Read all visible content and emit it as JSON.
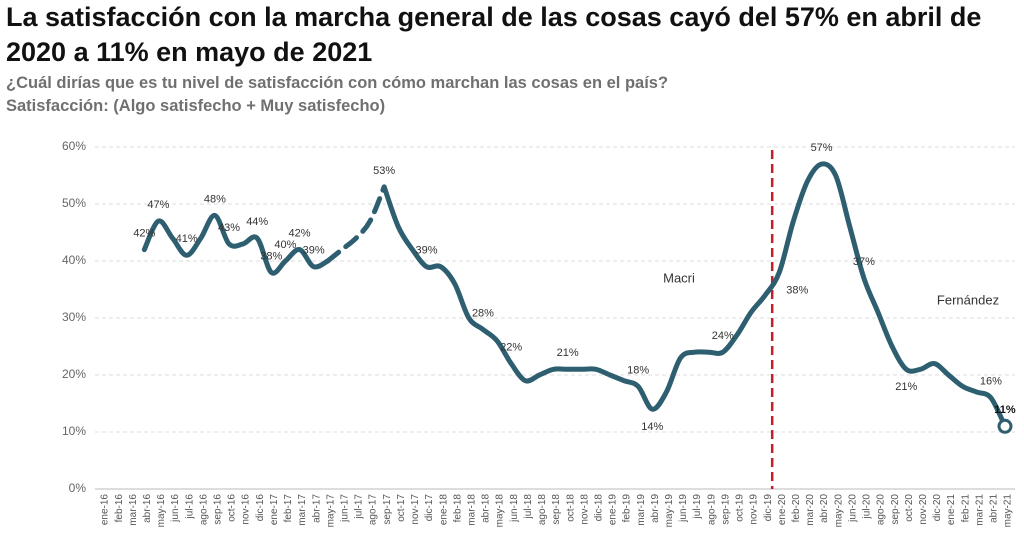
{
  "chart_data": {
    "type": "line",
    "title": "La satisfacción con la marcha general de las cosas cayó del 57% en abril de 2020 a 11% en mayo de 2021",
    "subtitle": "¿Cuál dirías que es tu nivel de satisfacción con cómo marchan las cosas en el país?",
    "note": "Satisfacción: (Algo satisfecho + Muy satisfecho)",
    "annotations": [
      "Macri",
      "Fernández"
    ],
    "categories": [
      "ene-16",
      "feb-16",
      "mar-16",
      "abr-16",
      "may-16",
      "jun-16",
      "jul-16",
      "ago-16",
      "sep-16",
      "oct-16",
      "nov-16",
      "dic-16",
      "ene-17",
      "feb-17",
      "mar-17",
      "abr-17",
      "may-17",
      "jun-17",
      "jul-17",
      "ago-17",
      "sep-17",
      "oct-17",
      "nov-17",
      "dic-17",
      "ene-18",
      "feb-18",
      "mar-18",
      "abr-18",
      "may-18",
      "jun-18",
      "jul-18",
      "ago-18",
      "sep-18",
      "oct-18",
      "nov-18",
      "dic-18",
      "ene-19",
      "feb-19",
      "mar-19",
      "abr-19",
      "may-19",
      "jun-19",
      "jul-19",
      "ago-19",
      "sep-19",
      "oct-19",
      "nov-19",
      "dic-19",
      "ene-20",
      "feb-20",
      "mar-20",
      "abr-20",
      "may-20",
      "jun-20",
      "jul-20",
      "ago-20",
      "sep-20",
      "oct-20",
      "nov-20",
      "dic-20",
      "ene-21",
      "feb-21",
      "mar-21",
      "abr-21",
      "may-21"
    ],
    "series": [
      {
        "color": "#2e5f70",
        "values": [
          null,
          null,
          null,
          42,
          47,
          44,
          41,
          44,
          48,
          43,
          43,
          44,
          38,
          40,
          42,
          39,
          40,
          null,
          null,
          null,
          53,
          46,
          42,
          39,
          39,
          36,
          30,
          28,
          26,
          22,
          19,
          20,
          21,
          21,
          21,
          21,
          20,
          19,
          18,
          14,
          17,
          23,
          24,
          24,
          24,
          27,
          31,
          34,
          38,
          47,
          54,
          57,
          55,
          46,
          37,
          31,
          25,
          21,
          21,
          22,
          20,
          18,
          17,
          16,
          11
        ],
        "value_labels": [
          null,
          null,
          null,
          "42%",
          "47%",
          null,
          "41%",
          null,
          "48%",
          "43%",
          null,
          "44%",
          "38%",
          "40%",
          "42%",
          "39%",
          null,
          null,
          null,
          null,
          "53%",
          null,
          null,
          "39%",
          null,
          null,
          null,
          "28%",
          null,
          "22%",
          null,
          null,
          null,
          "21%",
          null,
          null,
          null,
          null,
          "18%",
          "14%",
          null,
          null,
          null,
          null,
          "24%",
          null,
          null,
          null,
          "38%",
          null,
          null,
          "57%",
          null,
          null,
          "37%",
          null,
          null,
          "21%",
          null,
          null,
          null,
          null,
          null,
          "16%",
          "11%"
        ]
      },
      {
        "color": "#2e5f70",
        "dashed": true,
        "values": [
          null,
          null,
          null,
          null,
          null,
          null,
          null,
          null,
          null,
          null,
          null,
          null,
          null,
          null,
          null,
          null,
          40,
          42,
          44,
          47,
          53,
          null,
          null,
          null,
          null,
          null,
          null,
          null,
          null,
          null,
          null,
          null,
          null,
          null,
          null,
          null,
          null,
          null,
          null,
          null,
          null,
          null,
          null,
          null,
          null,
          null,
          null,
          null,
          null,
          null,
          null,
          null,
          null,
          null,
          null,
          null,
          null,
          null,
          null,
          null,
          null,
          null,
          null,
          null,
          null
        ]
      }
    ],
    "ylim": [
      0,
      60
    ],
    "yticks": [
      {
        "value": 0,
        "label": "0%"
      },
      {
        "value": 10,
        "label": "10%"
      },
      {
        "value": 20,
        "label": "20%"
      },
      {
        "value": 30,
        "label": "30%"
      },
      {
        "value": 40,
        "label": "40%"
      },
      {
        "value": 50,
        "label": "50%"
      },
      {
        "value": 60,
        "label": "60%"
      }
    ],
    "grid": true
  }
}
